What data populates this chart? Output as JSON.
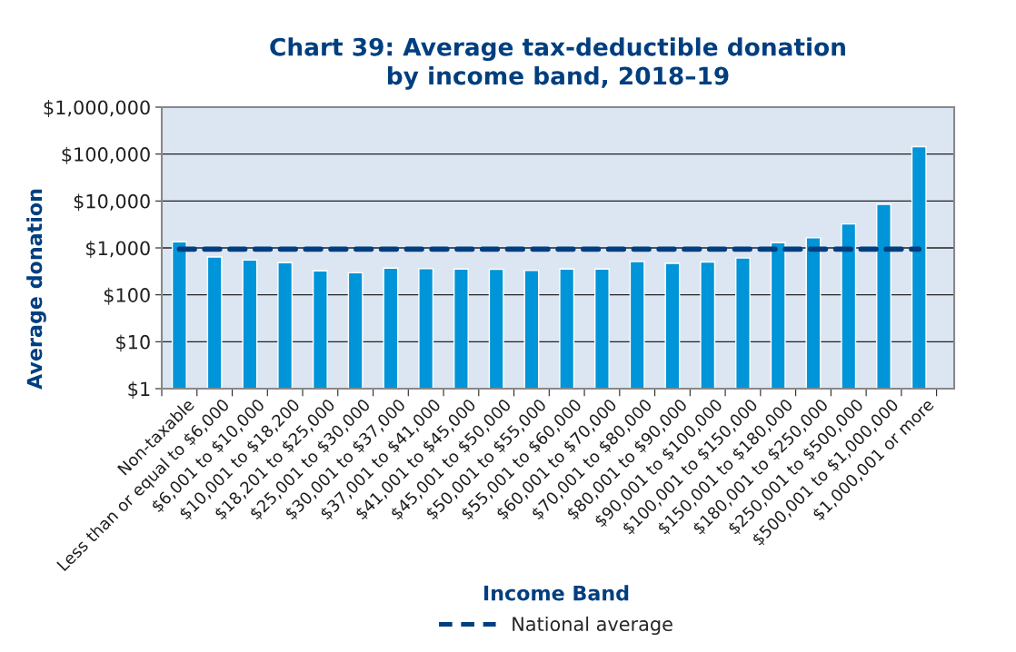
{
  "chart_data": {
    "type": "bar",
    "title": "Chart 39: Average tax-deductible donation\nby income band, 2018–19",
    "xlabel": "Income Band",
    "ylabel": "Average donation",
    "categories": [
      "Non-taxable",
      "Less than or equal to $6,000",
      "$6,001 to $10,000",
      "$10,001 to $18,200",
      "$18,201 to $25,000",
      "$25,001 to $30,000",
      "$30,001 to $37,000",
      "$37,001 to $41,000",
      "$41,001 to $45,000",
      "$45,001 to $50,000",
      "$50,001 to $55,000",
      "$55,001 to $60,000",
      "$60,001 to $70,000",
      "$70,001 to $80,000",
      "$80,001 to $90,000",
      "$90,001 to $100,000",
      "$100,001 to $150,000",
      "$150,001 to $180,000",
      "$180,001 to $250,000",
      "$250,001 to $500,000",
      "$500,001 to $1,000,000",
      "$1,000,001 or more"
    ],
    "values": [
      1350,
      640,
      550,
      485,
      325,
      295,
      370,
      360,
      355,
      350,
      330,
      355,
      355,
      510,
      470,
      500,
      610,
      1290,
      1640,
      3240,
      8470,
      143500
    ],
    "color": "#0094d8",
    "log": true,
    "ylim": [
      1,
      1000000
    ],
    "yticks": [
      {
        "value": 1,
        "label": "$1"
      },
      {
        "value": 10,
        "label": "$10"
      },
      {
        "value": 100,
        "label": "$100"
      },
      {
        "value": 1000,
        "label": "$1,000"
      },
      {
        "value": 10000,
        "label": "$10,000"
      },
      {
        "value": 100000,
        "label": "$100,000"
      },
      {
        "value": 1000000,
        "label": "$1,000,000"
      }
    ],
    "grid": "y",
    "legend": "bottom",
    "ref_lines": [
      {
        "axis": "y",
        "value": 940,
        "label": "National average",
        "color": "#003f7f",
        "line_style": "dashed"
      }
    ]
  }
}
